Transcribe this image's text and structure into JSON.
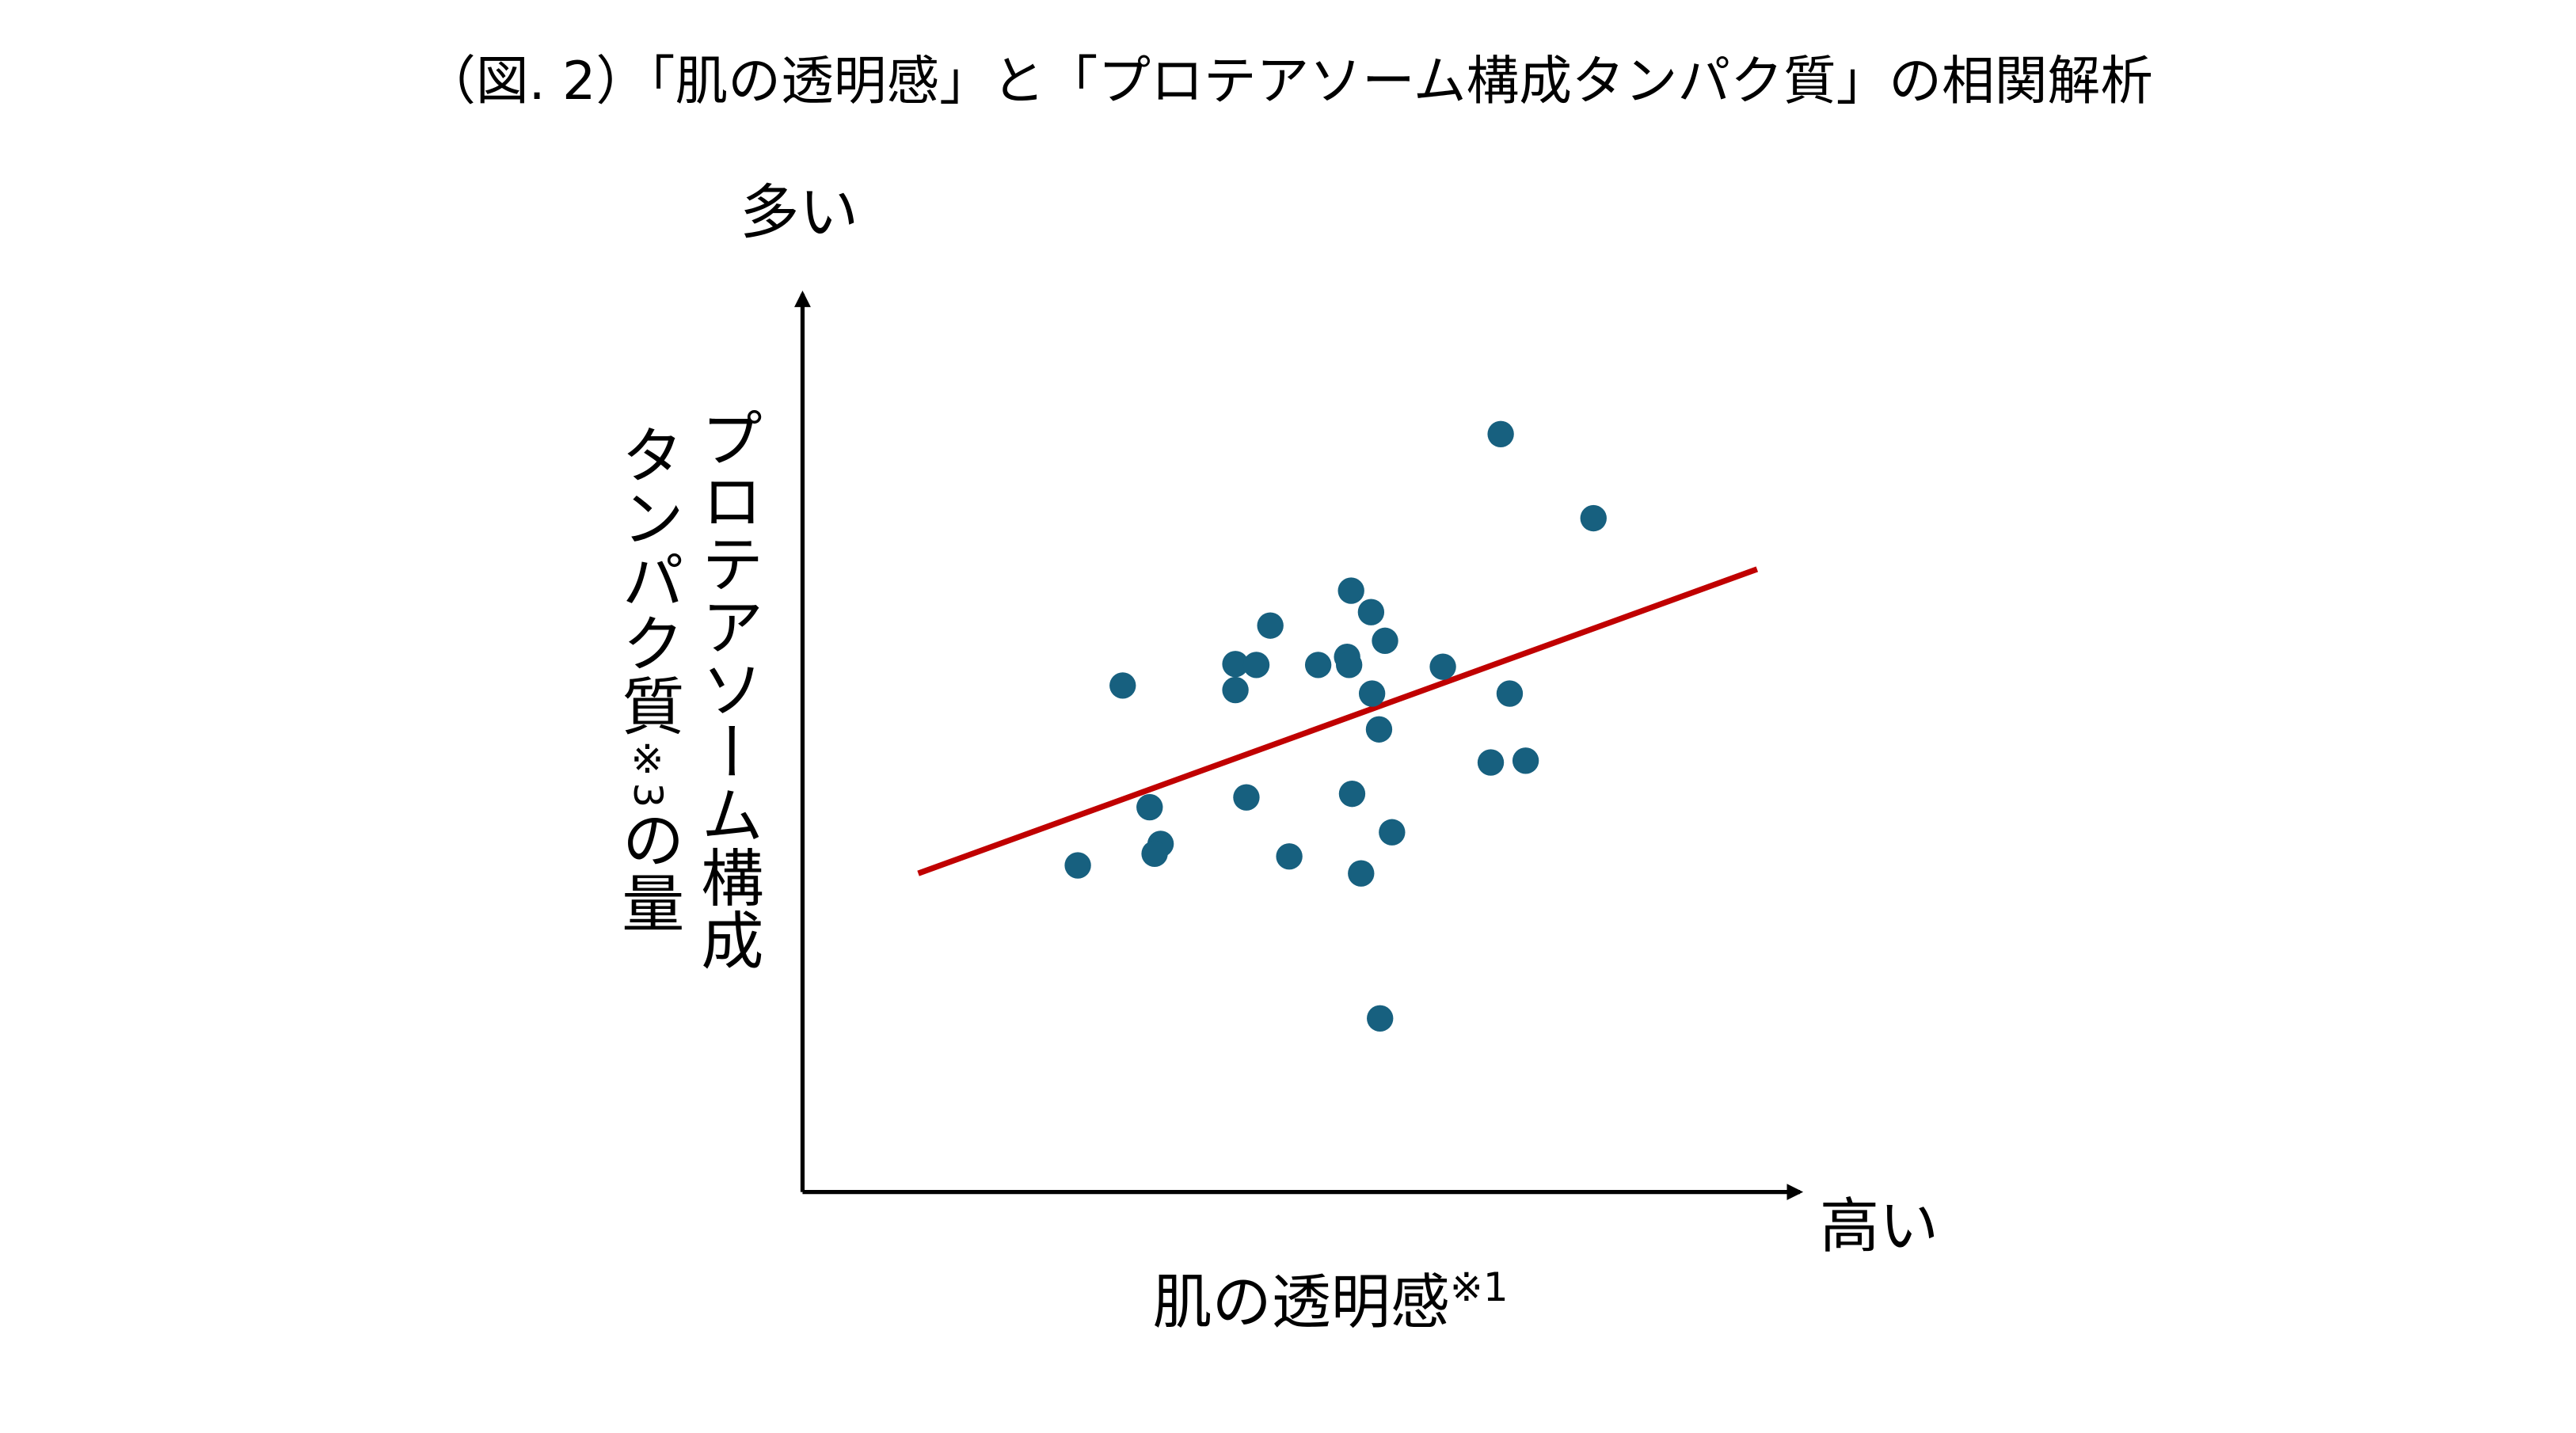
{
  "chart_data": {
    "type": "scatter",
    "title": "（図. 2）「肌の透明感」と「プロテアソーム構成タンパク質」の相関解析",
    "xlabel": "肌の透明感",
    "xlabel_note": "※1",
    "x_high_label": "高い",
    "ylabel_line1": "プロテアソーム構成",
    "ylabel_line2": "タンパク質",
    "ylabel_note": "※3",
    "ylabel_line2_tail": "の量",
    "y_high_label": "多い",
    "xlim": [
      0,
      100
    ],
    "ylim": [
      0,
      100
    ],
    "grid": false,
    "point_color": "#17607f",
    "trend_color": "#c00000",
    "points": [
      [
        70.0,
        84.7
      ],
      [
        79.3,
        75.3
      ],
      [
        55.0,
        67.2
      ],
      [
        57.0,
        64.8
      ],
      [
        46.9,
        63.3
      ],
      [
        58.4,
        61.6
      ],
      [
        43.4,
        59.0
      ],
      [
        45.5,
        58.9
      ],
      [
        51.7,
        58.9
      ],
      [
        54.6,
        59.8
      ],
      [
        54.8,
        58.9
      ],
      [
        64.2,
        58.7
      ],
      [
        32.1,
        56.6
      ],
      [
        43.4,
        56.1
      ],
      [
        57.1,
        55.7
      ],
      [
        70.9,
        55.7
      ],
      [
        57.8,
        51.7
      ],
      [
        69.0,
        48.0
      ],
      [
        72.5,
        48.2
      ],
      [
        34.8,
        43.0
      ],
      [
        44.5,
        44.1
      ],
      [
        55.1,
        44.5
      ],
      [
        59.1,
        40.2
      ],
      [
        35.9,
        38.9
      ],
      [
        35.3,
        37.8
      ],
      [
        48.8,
        37.5
      ],
      [
        27.6,
        36.5
      ],
      [
        56.0,
        35.6
      ],
      [
        57.9,
        19.4
      ]
    ],
    "trend_line": [
      [
        11.6,
        35.6
      ],
      [
        95.7,
        69.6
      ]
    ]
  }
}
